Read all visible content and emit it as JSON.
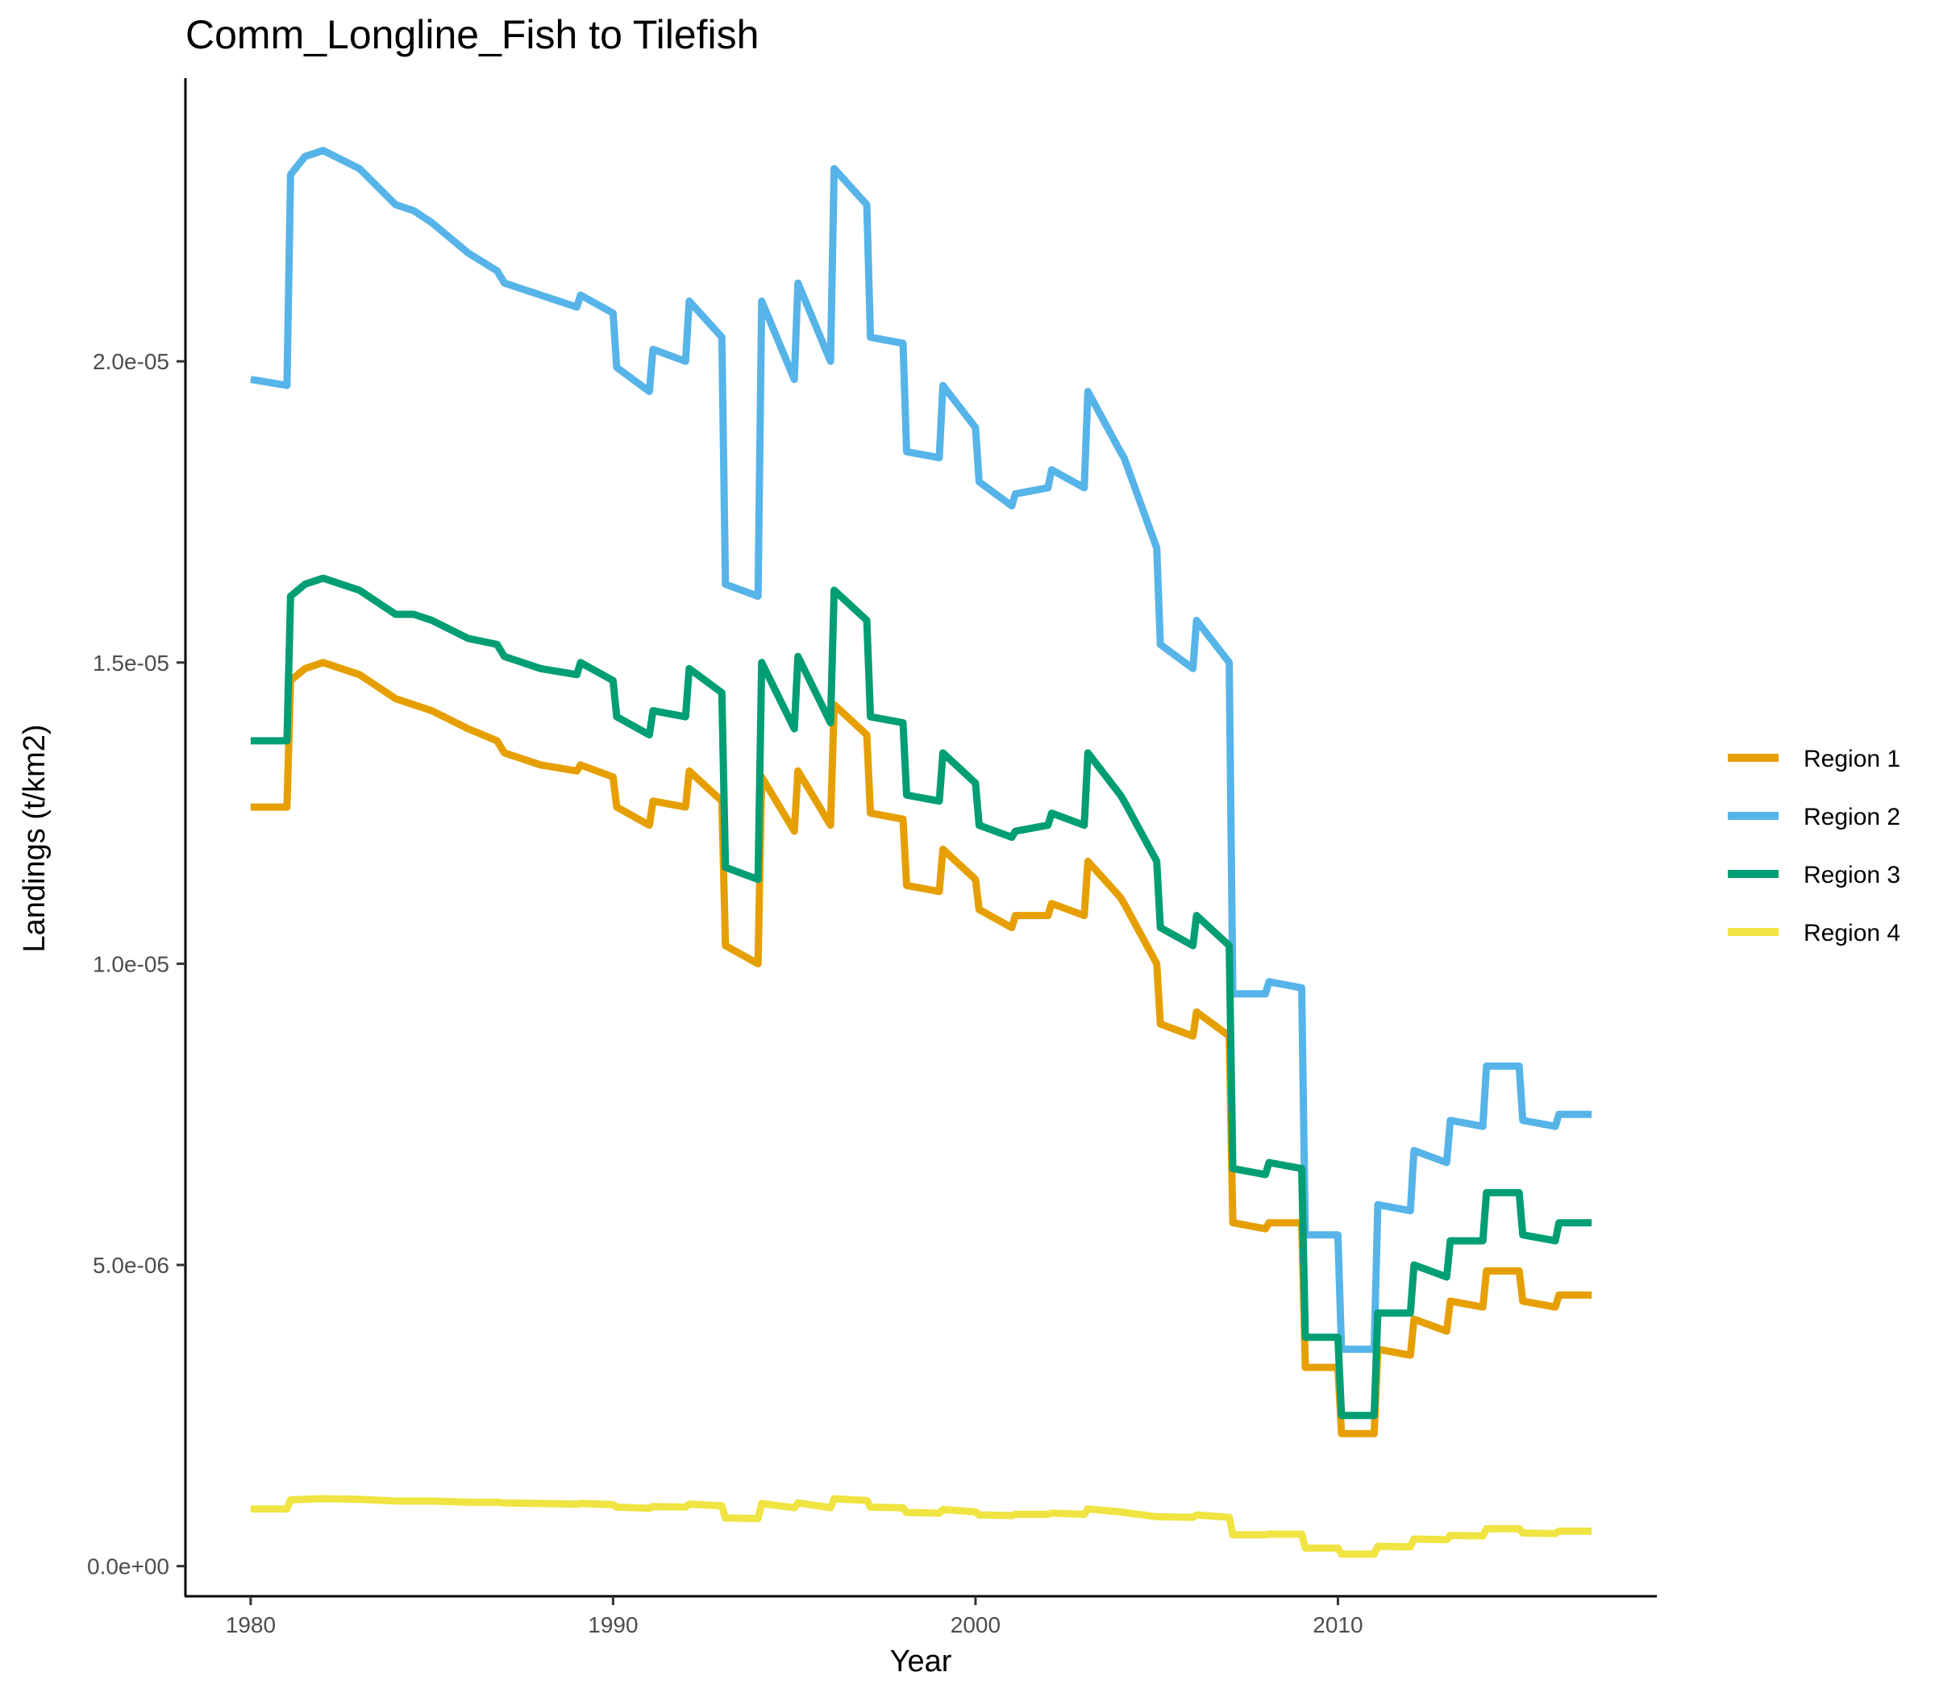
{
  "chart_data": {
    "type": "line",
    "title": "Comm_Longline_Fish to Tilefish",
    "xlabel": "Year",
    "ylabel": "Landings (t/km2)",
    "xlim": [
      1978.2,
      2018.8
    ],
    "ylim": [
      -5e-07,
      2.47e-05
    ],
    "xticks": [
      1980,
      1990,
      2000,
      2010
    ],
    "xtick_labels": [
      "1980",
      "1990",
      "2000",
      "2010"
    ],
    "yticks": [
      0,
      5e-06,
      1e-05,
      1.5e-05,
      2e-05
    ],
    "ytick_labels": [
      "0.0e+00",
      "5.0e-06",
      "1.0e-05",
      "1.5e-05",
      "2.0e-05"
    ],
    "grid": false,
    "legend_position": "right",
    "x": [
      1980.0,
      1981.0,
      1981.1,
      1981.5,
      1982.0,
      1983.0,
      1984.0,
      1984.5,
      1985.0,
      1986.0,
      1986.8,
      1987.0,
      1988.0,
      1989.0,
      1989.1,
      1990.0,
      1990.1,
      1991.0,
      1991.1,
      1992.0,
      1992.1,
      1993.0,
      1993.1,
      1994.0,
      1994.1,
      1995.0,
      1995.1,
      1996.0,
      1996.1,
      1997.0,
      1997.1,
      1998.0,
      1998.1,
      1999.0,
      1999.1,
      2000.0,
      2000.1,
      2001.0,
      2001.1,
      2002.0,
      2002.1,
      2003.0,
      2003.1,
      2004.0,
      2004.1,
      2005.0,
      2005.1,
      2006.0,
      2006.1,
      2007.0,
      2007.1,
      2008.0,
      2008.1,
      2009.0,
      2009.1,
      2010.0,
      2010.1,
      2011.0,
      2011.1,
      2012.0,
      2012.1,
      2013.0,
      2013.1,
      2014.0,
      2014.1,
      2015.0,
      2015.1,
      2016.0,
      2016.1,
      2017.0
    ],
    "series": [
      {
        "name": "Region 1",
        "color": "#E69F00",
        "values": [
          1.26e-05,
          1.26e-05,
          1.47e-05,
          1.49e-05,
          1.5e-05,
          1.48e-05,
          1.44e-05,
          1.43e-05,
          1.42e-05,
          1.39e-05,
          1.37e-05,
          1.35e-05,
          1.33e-05,
          1.32e-05,
          1.33e-05,
          1.31e-05,
          1.26e-05,
          1.23e-05,
          1.27e-05,
          1.26e-05,
          1.32e-05,
          1.27e-05,
          1.03e-05,
          1e-05,
          1.31e-05,
          1.22e-05,
          1.32e-05,
          1.23e-05,
          1.43e-05,
          1.38e-05,
          1.25e-05,
          1.24e-05,
          1.13e-05,
          1.12e-05,
          1.19e-05,
          1.14e-05,
          1.09e-05,
          1.06e-05,
          1.08e-05,
          1.08e-05,
          1.1e-05,
          1.08e-05,
          1.17e-05,
          1.11e-05,
          1.1e-05,
          1e-05,
          9e-06,
          8.8e-06,
          9.2e-06,
          8.8e-06,
          5.7e-06,
          5.6e-06,
          5.7e-06,
          5.7e-06,
          3.3e-06,
          3.3e-06,
          2.2e-06,
          2.2e-06,
          3.6e-06,
          3.5e-06,
          4.1e-06,
          3.9e-06,
          4.4e-06,
          4.3e-06,
          4.9e-06,
          4.9e-06,
          4.4e-06,
          4.3e-06,
          4.5e-06,
          4.5e-06
        ]
      },
      {
        "name": "Region 2",
        "color": "#56B4E9",
        "values": [
          1.97e-05,
          1.96e-05,
          2.31e-05,
          2.34e-05,
          2.35e-05,
          2.32e-05,
          2.26e-05,
          2.25e-05,
          2.23e-05,
          2.18e-05,
          2.15e-05,
          2.13e-05,
          2.11e-05,
          2.09e-05,
          2.11e-05,
          2.08e-05,
          1.99e-05,
          1.95e-05,
          2.02e-05,
          2e-05,
          2.1e-05,
          2.04e-05,
          1.63e-05,
          1.61e-05,
          2.1e-05,
          1.97e-05,
          2.13e-05,
          2e-05,
          2.32e-05,
          2.26e-05,
          2.04e-05,
          2.03e-05,
          1.85e-05,
          1.84e-05,
          1.96e-05,
          1.89e-05,
          1.8e-05,
          1.76e-05,
          1.78e-05,
          1.79e-05,
          1.82e-05,
          1.79e-05,
          1.95e-05,
          1.85e-05,
          1.84e-05,
          1.69e-05,
          1.53e-05,
          1.49e-05,
          1.57e-05,
          1.5e-05,
          9.5e-06,
          9.5e-06,
          9.7e-06,
          9.6e-06,
          5.5e-06,
          5.5e-06,
          3.6e-06,
          3.6e-06,
          6e-06,
          5.9e-06,
          6.9e-06,
          6.7e-06,
          7.4e-06,
          7.3e-06,
          8.3e-06,
          8.3e-06,
          7.4e-06,
          7.3e-06,
          7.5e-06,
          7.5e-06
        ]
      },
      {
        "name": "Region 3",
        "color": "#009E73",
        "values": [
          1.37e-05,
          1.37e-05,
          1.61e-05,
          1.63e-05,
          1.64e-05,
          1.62e-05,
          1.58e-05,
          1.58e-05,
          1.57e-05,
          1.54e-05,
          1.53e-05,
          1.51e-05,
          1.49e-05,
          1.48e-05,
          1.5e-05,
          1.47e-05,
          1.41e-05,
          1.38e-05,
          1.42e-05,
          1.41e-05,
          1.49e-05,
          1.45e-05,
          1.16e-05,
          1.14e-05,
          1.5e-05,
          1.39e-05,
          1.51e-05,
          1.4e-05,
          1.62e-05,
          1.57e-05,
          1.41e-05,
          1.4e-05,
          1.28e-05,
          1.27e-05,
          1.35e-05,
          1.3e-05,
          1.23e-05,
          1.21e-05,
          1.22e-05,
          1.23e-05,
          1.25e-05,
          1.23e-05,
          1.35e-05,
          1.28e-05,
          1.27e-05,
          1.17e-05,
          1.06e-05,
          1.03e-05,
          1.08e-05,
          1.03e-05,
          6.6e-06,
          6.5e-06,
          6.7e-06,
          6.6e-06,
          3.8e-06,
          3.8e-06,
          2.5e-06,
          2.5e-06,
          4.2e-06,
          4.2e-06,
          5e-06,
          4.8e-06,
          5.4e-06,
          5.4e-06,
          6.2e-06,
          6.2e-06,
          5.5e-06,
          5.4e-06,
          5.7e-06,
          5.7e-06
        ]
      },
      {
        "name": "Region 4",
        "color": "#F0E442",
        "values": [
          9.5e-07,
          9.5e-07,
          1.1e-06,
          1.11e-06,
          1.12e-06,
          1.11e-06,
          1.08e-06,
          1.08e-06,
          1.08e-06,
          1.06e-06,
          1.06e-06,
          1.05e-06,
          1.04e-06,
          1.03e-06,
          1.04e-06,
          1.02e-06,
          9.8e-07,
          9.6e-07,
          9.9e-07,
          9.8e-07,
          1.03e-06,
          1e-06,
          8e-07,
          7.9e-07,
          1.04e-06,
          9.7e-07,
          1.05e-06,
          9.7e-07,
          1.12e-06,
          1.09e-06,
          9.8e-07,
          9.7e-07,
          8.9e-07,
          8.8e-07,
          9.4e-07,
          9e-07,
          8.5e-07,
          8.4e-07,
          8.6e-07,
          8.6e-07,
          8.8e-07,
          8.6e-07,
          9.5e-07,
          9e-07,
          8.9e-07,
          8.2e-07,
          8.2e-07,
          8.1e-07,
          8.5e-07,
          8.1e-07,
          5.2e-07,
          5.2e-07,
          5.3e-07,
          5.3e-07,
          3e-07,
          3e-07,
          2e-07,
          2e-07,
          3.3e-07,
          3.2e-07,
          4.5e-07,
          4.4e-07,
          5.1e-07,
          5e-07,
          6.2e-07,
          6.2e-07,
          5.5e-07,
          5.4e-07,
          5.8e-07,
          5.8e-07
        ]
      }
    ]
  }
}
